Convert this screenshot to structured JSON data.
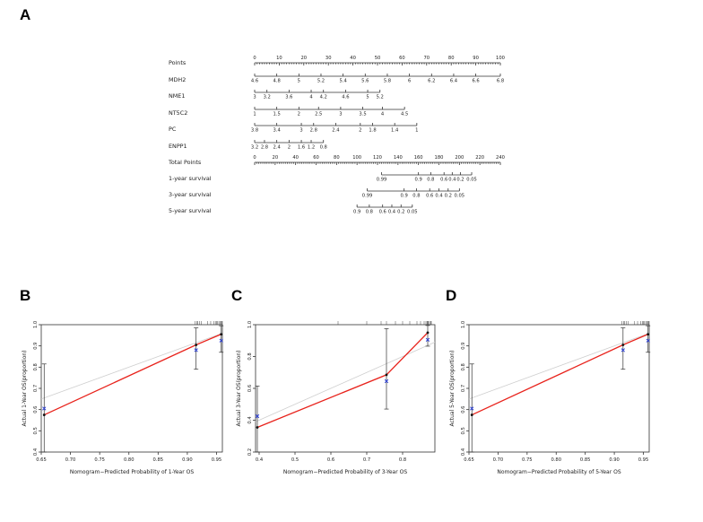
{
  "panels": {
    "A": "A",
    "B": "B",
    "C": "C",
    "D": "D"
  },
  "chart_data": [
    {
      "type": "nomogram",
      "panel": "A",
      "rows": [
        {
          "label": "Points",
          "scale": "points",
          "ticks": [
            {
              "text": "0",
              "points": 0
            },
            {
              "text": "10",
              "points": 10
            },
            {
              "text": "20",
              "points": 20
            },
            {
              "text": "30",
              "points": 30
            },
            {
              "text": "40",
              "points": 40
            },
            {
              "text": "50",
              "points": 50
            },
            {
              "text": "60",
              "points": 60
            },
            {
              "text": "70",
              "points": 70
            },
            {
              "text": "80",
              "points": 80
            },
            {
              "text": "90",
              "points": 90
            },
            {
              "text": "100",
              "points": 100
            }
          ]
        },
        {
          "label": "MDH2",
          "scale": "points",
          "ticks": [
            {
              "text": "4.6",
              "points": 0
            },
            {
              "text": "4.8",
              "points": 9
            },
            {
              "text": "5",
              "points": 18
            },
            {
              "text": "5.2",
              "points": 27
            },
            {
              "text": "5.4",
              "points": 36
            },
            {
              "text": "5.6",
              "points": 45
            },
            {
              "text": "5.8",
              "points": 54
            },
            {
              "text": "6",
              "points": 63
            },
            {
              "text": "6.2",
              "points": 72
            },
            {
              "text": "6.4",
              "points": 81
            },
            {
              "text": "6.6",
              "points": 90
            },
            {
              "text": "6.8",
              "points": 100
            }
          ]
        },
        {
          "label": "NME1",
          "scale": "points",
          "ticks": [
            {
              "text": "3",
              "points": 0
            },
            {
              "text": "3.2",
              "points": 5
            },
            {
              "text": "3.6",
              "points": 14
            },
            {
              "text": "4",
              "points": 23
            },
            {
              "text": "4.2",
              "points": 28
            },
            {
              "text": "4.6",
              "points": 37
            },
            {
              "text": "5",
              "points": 46
            },
            {
              "text": "5.2",
              "points": 51
            }
          ]
        },
        {
          "label": "NT5C2",
          "scale": "points",
          "ticks": [
            {
              "text": "1",
              "points": 0
            },
            {
              "text": "1.5",
              "points": 9
            },
            {
              "text": "2",
              "points": 18
            },
            {
              "text": "2.5",
              "points": 26
            },
            {
              "text": "3",
              "points": 35
            },
            {
              "text": "3.5",
              "points": 44
            },
            {
              "text": "4",
              "points": 52
            },
            {
              "text": "4.5",
              "points": 61
            }
          ]
        },
        {
          "label": "PC",
          "scale": "points",
          "ticks": [
            {
              "text": "3.8",
              "points": 0
            },
            {
              "text": "3.4",
              "points": 9
            },
            {
              "text": "3",
              "points": 19
            },
            {
              "text": "2.8",
              "points": 24
            },
            {
              "text": "2.4",
              "points": 33
            },
            {
              "text": "2",
              "points": 43
            },
            {
              "text": "1.8",
              "points": 48
            },
            {
              "text": "1.4",
              "points": 57
            },
            {
              "text": "1",
              "points": 66
            }
          ]
        },
        {
          "label": "ENPP1",
          "scale": "points",
          "ticks": [
            {
              "text": "3.2",
              "points": 0
            },
            {
              "text": "2.8",
              "points": 4
            },
            {
              "text": "2.4",
              "points": 9
            },
            {
              "text": "2",
              "points": 14
            },
            {
              "text": "1.6",
              "points": 19
            },
            {
              "text": "1.2",
              "points": 23
            },
            {
              "text": "0.8",
              "points": 28
            }
          ]
        },
        {
          "label": "Total Points",
          "scale": "total",
          "ticks": [
            {
              "text": "0",
              "total": 0
            },
            {
              "text": "20",
              "total": 20
            },
            {
              "text": "40",
              "total": 40
            },
            {
              "text": "60",
              "total": 60
            },
            {
              "text": "80",
              "total": 80
            },
            {
              "text": "100",
              "total": 100
            },
            {
              "text": "120",
              "total": 120
            },
            {
              "text": "140",
              "total": 140
            },
            {
              "text": "160",
              "total": 160
            },
            {
              "text": "180",
              "total": 180
            },
            {
              "text": "200",
              "total": 200
            },
            {
              "text": "220",
              "total": 220
            },
            {
              "text": "240",
              "total": 240
            }
          ]
        },
        {
          "label": "1-year survival",
          "scale": "total",
          "ticks": [
            {
              "text": "0.99",
              "total": 124
            },
            {
              "text": "0.9",
              "total": 160
            },
            {
              "text": "0.8",
              "total": 172
            },
            {
              "text": "0.6",
              "total": 185
            },
            {
              "text": "0.4",
              "total": 193
            },
            {
              "text": "0.2",
              "total": 201
            },
            {
              "text": "0.05",
              "total": 212
            }
          ]
        },
        {
          "label": "3-year survival",
          "scale": "total",
          "ticks": [
            {
              "text": "0.99",
              "total": 110
            },
            {
              "text": "0.9",
              "total": 146
            },
            {
              "text": "0.8",
              "total": 158
            },
            {
              "text": "0.6",
              "total": 171
            },
            {
              "text": "0.4",
              "total": 180
            },
            {
              "text": "0.2",
              "total": 189
            },
            {
              "text": "0.05",
              "total": 200
            }
          ]
        },
        {
          "label": "5-year survival",
          "scale": "total",
          "ticks": [
            {
              "text": "0.9",
              "total": 100
            },
            {
              "text": "0.8",
              "total": 112
            },
            {
              "text": "0.6",
              "total": 125
            },
            {
              "text": "0.4",
              "total": 134
            },
            {
              "text": "0.2",
              "total": 143
            },
            {
              "text": "0.05",
              "total": 154
            }
          ]
        }
      ]
    },
    {
      "type": "calibration",
      "panel": "B",
      "xlabel": "Nomogram−Predicted Probability of 1-Year OS",
      "ylabel": "Actual 1-Year OS(proportion)",
      "xlim": [
        0.65,
        0.96
      ],
      "ylim": [
        0.4,
        1.0
      ],
      "xticks": [
        "0.65",
        "0.70",
        "0.75",
        "0.80",
        "0.85",
        "0.90",
        "0.95"
      ],
      "yticks": [
        "0.4",
        "0.5",
        "0.6",
        "0.7",
        "0.8",
        "0.9",
        "1.0"
      ],
      "ideal": [
        [
          0.65,
          0.65
        ],
        [
          0.96,
          0.96
        ]
      ],
      "points": [
        {
          "x": 0.655,
          "y": 0.575,
          "lo": 0.4,
          "hi": 0.815,
          "corrected": 0.605
        },
        {
          "x": 0.915,
          "y": 0.905,
          "lo": 0.79,
          "hi": 0.985,
          "corrected": 0.88
        },
        {
          "x": 0.958,
          "y": 0.955,
          "lo": 0.87,
          "hi": 0.995,
          "corrected": 0.925
        }
      ],
      "rug": [
        0.913,
        0.916,
        0.918,
        0.921,
        0.924,
        0.935,
        0.94,
        0.945,
        0.948,
        0.95,
        0.952,
        0.954,
        0.956,
        0.958,
        0.959,
        0.96
      ]
    },
    {
      "type": "calibration",
      "panel": "C",
      "xlabel": "Nomogram−Predicted Probability of 3-Year OS",
      "ylabel": "Actual 3-Year OS(proportion)",
      "xlim": [
        0.39,
        0.89
      ],
      "ylim": [
        0.2,
        1.0
      ],
      "xticks": [
        "0.4",
        "0.5",
        "0.6",
        "0.7",
        "0.8"
      ],
      "yticks": [
        "0.2",
        "0.4",
        "0.6",
        "0.8",
        "1.0"
      ],
      "ideal": [
        [
          0.39,
          0.39
        ],
        [
          0.89,
          0.89
        ]
      ],
      "points": [
        {
          "x": 0.395,
          "y": 0.355,
          "lo": 0.2,
          "hi": 0.615,
          "corrected": 0.425
        },
        {
          "x": 0.755,
          "y": 0.685,
          "lo": 0.47,
          "hi": 0.975,
          "corrected": 0.645
        },
        {
          "x": 0.87,
          "y": 0.95,
          "lo": 0.865,
          "hi": 0.995,
          "corrected": 0.905
        }
      ],
      "rug": [
        0.62,
        0.7,
        0.74,
        0.755,
        0.78,
        0.8,
        0.82,
        0.84,
        0.85,
        0.86,
        0.865,
        0.868,
        0.87,
        0.872,
        0.875,
        0.878,
        0.88
      ]
    },
    {
      "type": "calibration",
      "panel": "D",
      "xlabel": "Nomogram−Predicted Probability of 5-Year OS",
      "ylabel": "Actual 5-Year OS(proportion)",
      "xlim": [
        0.65,
        0.96
      ],
      "ylim": [
        0.4,
        1.0
      ],
      "xticks": [
        "0.65",
        "0.70",
        "0.75",
        "0.80",
        "0.85",
        "0.90",
        "0.95"
      ],
      "yticks": [
        "0.4",
        "0.5",
        "0.6",
        "0.7",
        "0.8",
        "0.9",
        "1.0"
      ],
      "ideal": [
        [
          0.65,
          0.65
        ],
        [
          0.96,
          0.96
        ]
      ],
      "points": [
        {
          "x": 0.655,
          "y": 0.575,
          "lo": 0.4,
          "hi": 0.815,
          "corrected": 0.605
        },
        {
          "x": 0.915,
          "y": 0.905,
          "lo": 0.79,
          "hi": 0.985,
          "corrected": 0.88
        },
        {
          "x": 0.958,
          "y": 0.955,
          "lo": 0.87,
          "hi": 0.995,
          "corrected": 0.925
        }
      ],
      "rug": [
        0.913,
        0.916,
        0.918,
        0.921,
        0.924,
        0.935,
        0.94,
        0.945,
        0.948,
        0.95,
        0.952,
        0.954,
        0.956,
        0.958,
        0.959,
        0.96
      ]
    }
  ]
}
